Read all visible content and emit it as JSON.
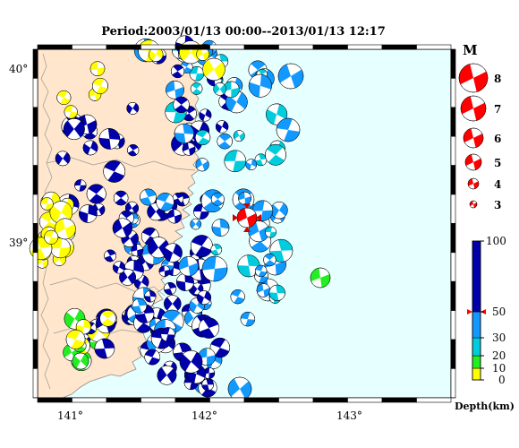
{
  "title": "Period:2003/01/13 00:00--2013/01/13 12:17",
  "axes": {
    "lon_labels": [
      "141°",
      "142°",
      "143°"
    ],
    "lat_labels": [
      "40°",
      "39°"
    ]
  },
  "legend": {
    "magnitude_title": "M",
    "magnitudes": [
      "8",
      "7",
      "6",
      "5",
      "4",
      "3"
    ],
    "depth_title": "Depth(km)",
    "depth_ticks": [
      "100",
      "50",
      "30",
      "20",
      "10",
      "0"
    ],
    "depth_colors": {
      "0-10": "#ffff00",
      "10-20": "#22ee22",
      "20-30": "#00ccdd",
      "30-50": "#1199ff",
      "50-100": "#0000aa"
    },
    "highlight_color": "#ff0000"
  },
  "colors": {
    "sea": "#e6ffff",
    "land": "#ffe6cc",
    "coast": "#9a9a9a"
  }
}
